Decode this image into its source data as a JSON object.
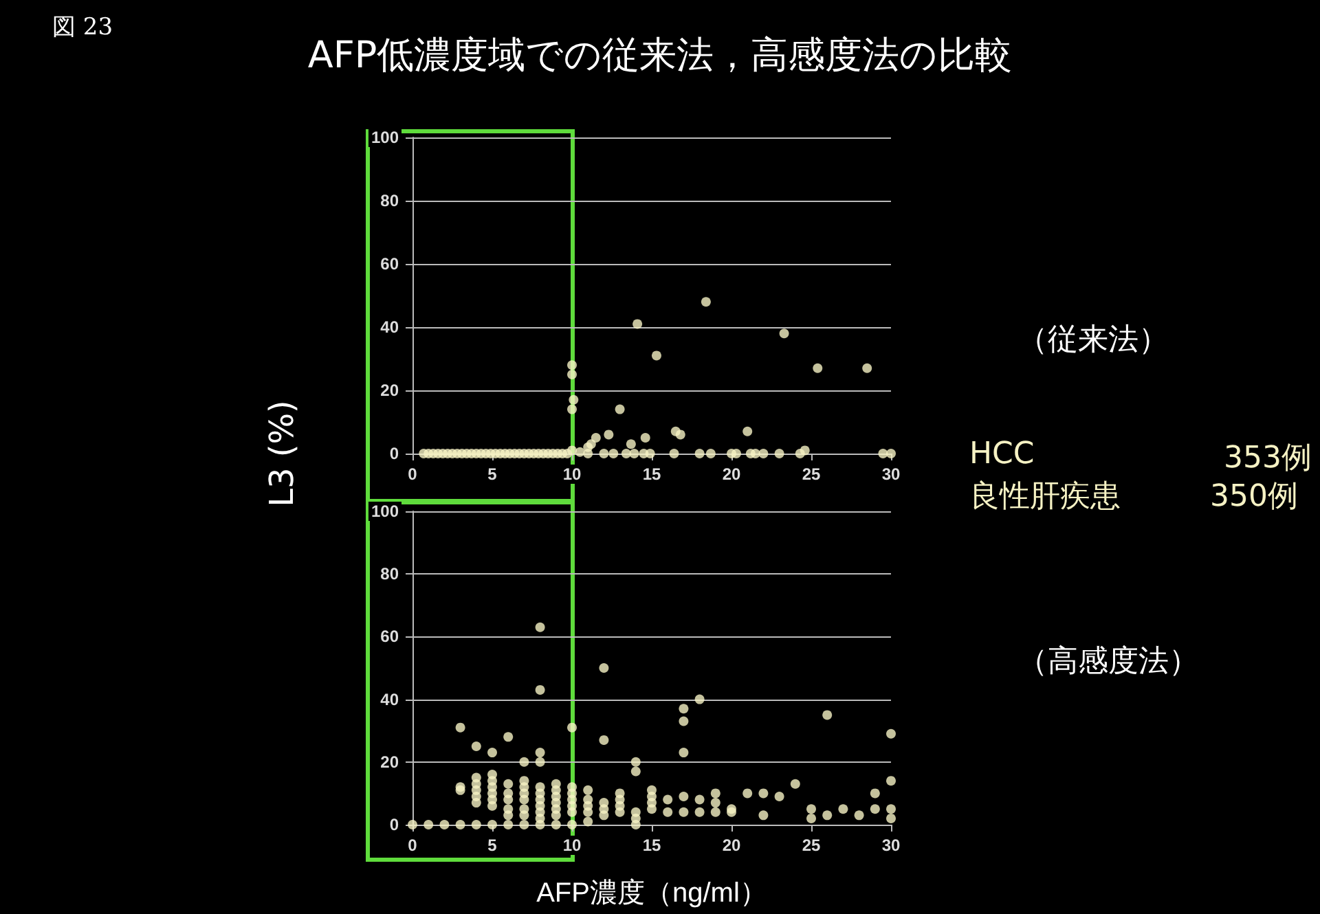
{
  "chart_data": [
    {
      "type": "scatter",
      "title": "AFP低濃度域での従来法，高感度法の比較",
      "ylabel": "L3 (%)",
      "annotations": [
        "図 23",
        "（従来法）",
        "HCC",
        "353例",
        "良性肝疾患",
        "350例"
      ],
      "xlim": [
        0,
        30
      ],
      "xticks": [
        0,
        5,
        10,
        15,
        20,
        25,
        30
      ],
      "ylim": [
        0,
        100
      ],
      "yticks": [
        0,
        20,
        40,
        60,
        80,
        100
      ],
      "grid": "y",
      "marker": "circle",
      "series": [
        {
          "color": "#f6f2c4",
          "x": [
            0.7,
            1,
            1.3,
            1.6,
            1.9,
            2.2,
            2.5,
            2.8,
            3.1,
            3.4,
            3.7,
            4,
            4.3,
            4.6,
            4.9,
            5.2,
            5.5,
            5.8,
            6.1,
            6.4,
            6.7,
            7,
            7.3,
            7.6,
            7.9,
            8.2,
            8.5,
            8.8,
            9.1,
            9.4,
            9.7,
            10,
            10,
            10.1,
            10,
            10,
            10.5,
            11,
            11.2,
            11.5,
            11,
            12,
            12.3,
            12.6,
            13,
            13.4,
            13.7,
            13.9,
            14.1,
            14.6,
            14.5,
            14.9,
            15.3,
            16.4,
            16.5,
            16.8,
            18,
            18.4,
            18.7,
            20,
            20.3,
            21,
            21.2,
            21.5,
            22,
            23,
            23.3,
            24.3,
            24.6,
            25.4,
            28.5,
            29.5,
            30
          ],
          "values": [
            0,
            0,
            0,
            0,
            0,
            0,
            0,
            0,
            0,
            0,
            0,
            0,
            0,
            0,
            0,
            0,
            0,
            0,
            0,
            0,
            0,
            0,
            0,
            0,
            0,
            0,
            0,
            0,
            0,
            0,
            0,
            28,
            25,
            17,
            14,
            1,
            0.5,
            2,
            3,
            5,
            0,
            0,
            6,
            0,
            14,
            0,
            3,
            0,
            41,
            5,
            0,
            0,
            31,
            0,
            7,
            6,
            0,
            48,
            0,
            0,
            0,
            7,
            0,
            0,
            0,
            0,
            38,
            0,
            1,
            27,
            27,
            0,
            0
          ]
        }
      ]
    },
    {
      "type": "scatter",
      "xlabel": "AFP濃度（ng/ml）",
      "annotations": [
        "（高感度法）"
      ],
      "xlim": [
        0,
        30
      ],
      "xticks": [
        0,
        5,
        10,
        15,
        20,
        25,
        30
      ],
      "ylim": [
        0,
        100
      ],
      "yticks": [
        0,
        20,
        40,
        60,
        80,
        100
      ],
      "grid": "y",
      "marker": "circle",
      "series": [
        {
          "color": "#f6f2c4",
          "x": [
            0,
            1,
            2,
            3,
            3,
            3,
            3,
            4,
            4,
            4,
            4,
            4,
            4,
            4,
            5,
            5,
            5,
            5,
            5,
            5,
            5,
            5,
            6,
            6,
            6,
            6,
            6,
            6,
            6,
            7,
            7,
            7,
            7,
            7,
            7,
            7,
            7,
            8,
            8,
            8,
            8,
            8,
            8,
            8,
            8,
            8,
            8,
            8,
            9,
            9,
            9,
            9,
            9,
            9,
            9,
            10,
            10,
            10,
            10,
            10,
            10,
            10,
            11,
            11,
            11,
            11,
            11,
            12,
            12,
            12,
            12,
            12,
            13,
            13,
            13,
            13,
            14,
            14,
            14,
            14,
            14,
            15,
            15,
            15,
            15,
            16,
            16,
            17,
            17,
            17,
            17,
            17,
            18,
            18,
            18,
            19,
            19,
            19,
            20,
            20,
            21,
            22,
            22,
            23,
            24,
            25,
            25,
            26,
            26,
            27,
            28,
            29,
            29,
            30,
            30,
            30,
            30
          ],
          "values": [
            0,
            0,
            0,
            0,
            11,
            12,
            31,
            0,
            7,
            9,
            11,
            13,
            15,
            25,
            0,
            6,
            8,
            10,
            12,
            14,
            16,
            23,
            0,
            3,
            5,
            8,
            10,
            13,
            28,
            0,
            3,
            5,
            8,
            10,
            12,
            14,
            20,
            0,
            2,
            4,
            6,
            8,
            10,
            12,
            20,
            23,
            43,
            63,
            0,
            3,
            5,
            7,
            9,
            11,
            13,
            0,
            4,
            6,
            8,
            10,
            12,
            31,
            1,
            4,
            6,
            8,
            11,
            3,
            5,
            7,
            27,
            50,
            4,
            6,
            8,
            10,
            0,
            2,
            4,
            17,
            20,
            5,
            7,
            9,
            11,
            4,
            8,
            4,
            9,
            23,
            33,
            37,
            4,
            8,
            40,
            4,
            7,
            10,
            4,
            5,
            10,
            3,
            10,
            9,
            13,
            2,
            5,
            3,
            35,
            5,
            3,
            5,
            10,
            2,
            5,
            14,
            29
          ]
        }
      ]
    }
  ]
}
